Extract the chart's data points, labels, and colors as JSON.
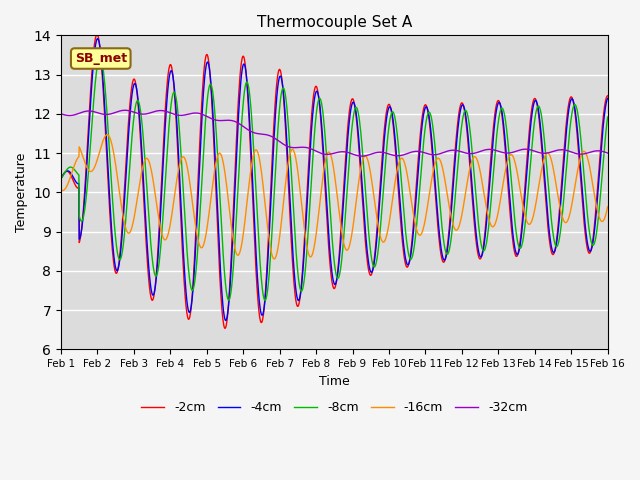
{
  "title": "Thermocouple Set A",
  "xlabel": "Time",
  "ylabel": "Temperature",
  "ylim": [
    6.0,
    14.0
  ],
  "yticks": [
    6.0,
    7.0,
    8.0,
    9.0,
    10.0,
    11.0,
    12.0,
    13.0,
    14.0
  ],
  "xtick_labels": [
    "Feb 1",
    "Feb 2",
    "Feb 3",
    "Feb 4",
    "Feb 5",
    "Feb 6",
    "Feb 7",
    "Feb 8",
    "Feb 9",
    "Feb 10",
    "Feb 11",
    "Feb 12",
    "Feb 13",
    "Feb 14",
    "Feb 15",
    "Feb 16"
  ],
  "legend_labels": [
    "-2cm",
    "-4cm",
    "-8cm",
    "-16cm",
    "-32cm"
  ],
  "line_colors": [
    "#ff0000",
    "#0000ff",
    "#00bb00",
    "#ff8c00",
    "#9900cc"
  ],
  "annotation_text": "SB_met",
  "bg_color": "#dcdcdc",
  "n_points": 1440,
  "days": 15
}
